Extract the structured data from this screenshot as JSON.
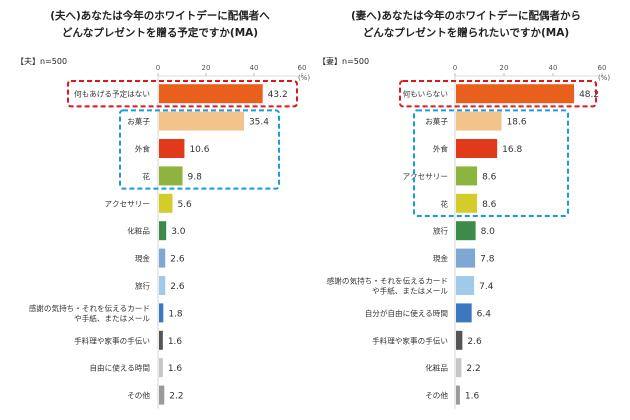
{
  "chart_data": [
    {
      "type": "bar",
      "title": "(夫へ)あなたは今年のホワイトデーに配偶者へ\nどんなプレゼントを贈る予定ですか(MA)",
      "sample_label": "【夫】n=500",
      "unit": "(%)",
      "xlim": [
        0,
        60
      ],
      "ticks": [
        "0",
        "20",
        "40",
        "60"
      ],
      "categories": [
        "何もあげる予定はない",
        "お菓子",
        "外食",
        "花",
        "アクセサリー",
        "化粧品",
        "現金",
        "旅行",
        "感謝の気持ち・それを伝えるカード\nや手紙、またはメール",
        "手料理や家事の手伝い",
        "自由に使える時間",
        "その他"
      ],
      "values": [
        43.2,
        35.4,
        10.6,
        9.8,
        5.6,
        3.0,
        2.6,
        2.6,
        1.8,
        1.6,
        1.6,
        2.2
      ],
      "value_labels": [
        "43.2",
        "35.4",
        "10.6",
        "9.8",
        "5.6",
        "3.0",
        "2.6",
        "2.6",
        "1.8",
        "1.6",
        "1.6",
        "2.2"
      ],
      "colors": [
        "#e8601c",
        "#f2c38a",
        "#e03a1a",
        "#8db43e",
        "#d4cc2a",
        "#3e8a4a",
        "#7ea7d4",
        "#9fcaea",
        "#3b78bf",
        "#555555",
        "#c6c6c6",
        "#9a9a9a"
      ],
      "highlight_red": [
        0
      ],
      "highlight_blue": [
        1,
        3
      ]
    },
    {
      "type": "bar",
      "title": "(妻へ)あなたは今年のホワイトデーに配偶者から\nどんなプレゼントを贈られたいですか(MA)",
      "sample_label": "【妻】n=500",
      "unit": "(%)",
      "xlim": [
        0,
        60
      ],
      "ticks": [
        "0",
        "20",
        "40",
        "60"
      ],
      "categories": [
        "何もいらない",
        "お菓子",
        "外食",
        "アクセサリー",
        "花",
        "旅行",
        "現金",
        "感謝の気持ち・それを伝えるカード\nや手紙、またはメール",
        "自分が自由に使える時間",
        "手料理や家事の手伝い",
        "化粧品",
        "その他"
      ],
      "values": [
        48.2,
        18.6,
        16.8,
        8.6,
        8.6,
        8.0,
        7.8,
        7.4,
        6.4,
        2.6,
        2.2,
        1.6
      ],
      "value_labels": [
        "48.2",
        "18.6",
        "16.8",
        "8.6",
        "8.6",
        "8.0",
        "7.8",
        "7.4",
        "6.4",
        "2.6",
        "2.2",
        "1.6"
      ],
      "colors": [
        "#e8601c",
        "#f2c38a",
        "#e03a1a",
        "#8db43e",
        "#d4cc2a",
        "#3e8a4a",
        "#7ea7d4",
        "#9fcaea",
        "#3b78bf",
        "#555555",
        "#c6c6c6",
        "#9a9a9a"
      ],
      "highlight_red": [
        0
      ],
      "highlight_blue": [
        1,
        4
      ]
    }
  ]
}
